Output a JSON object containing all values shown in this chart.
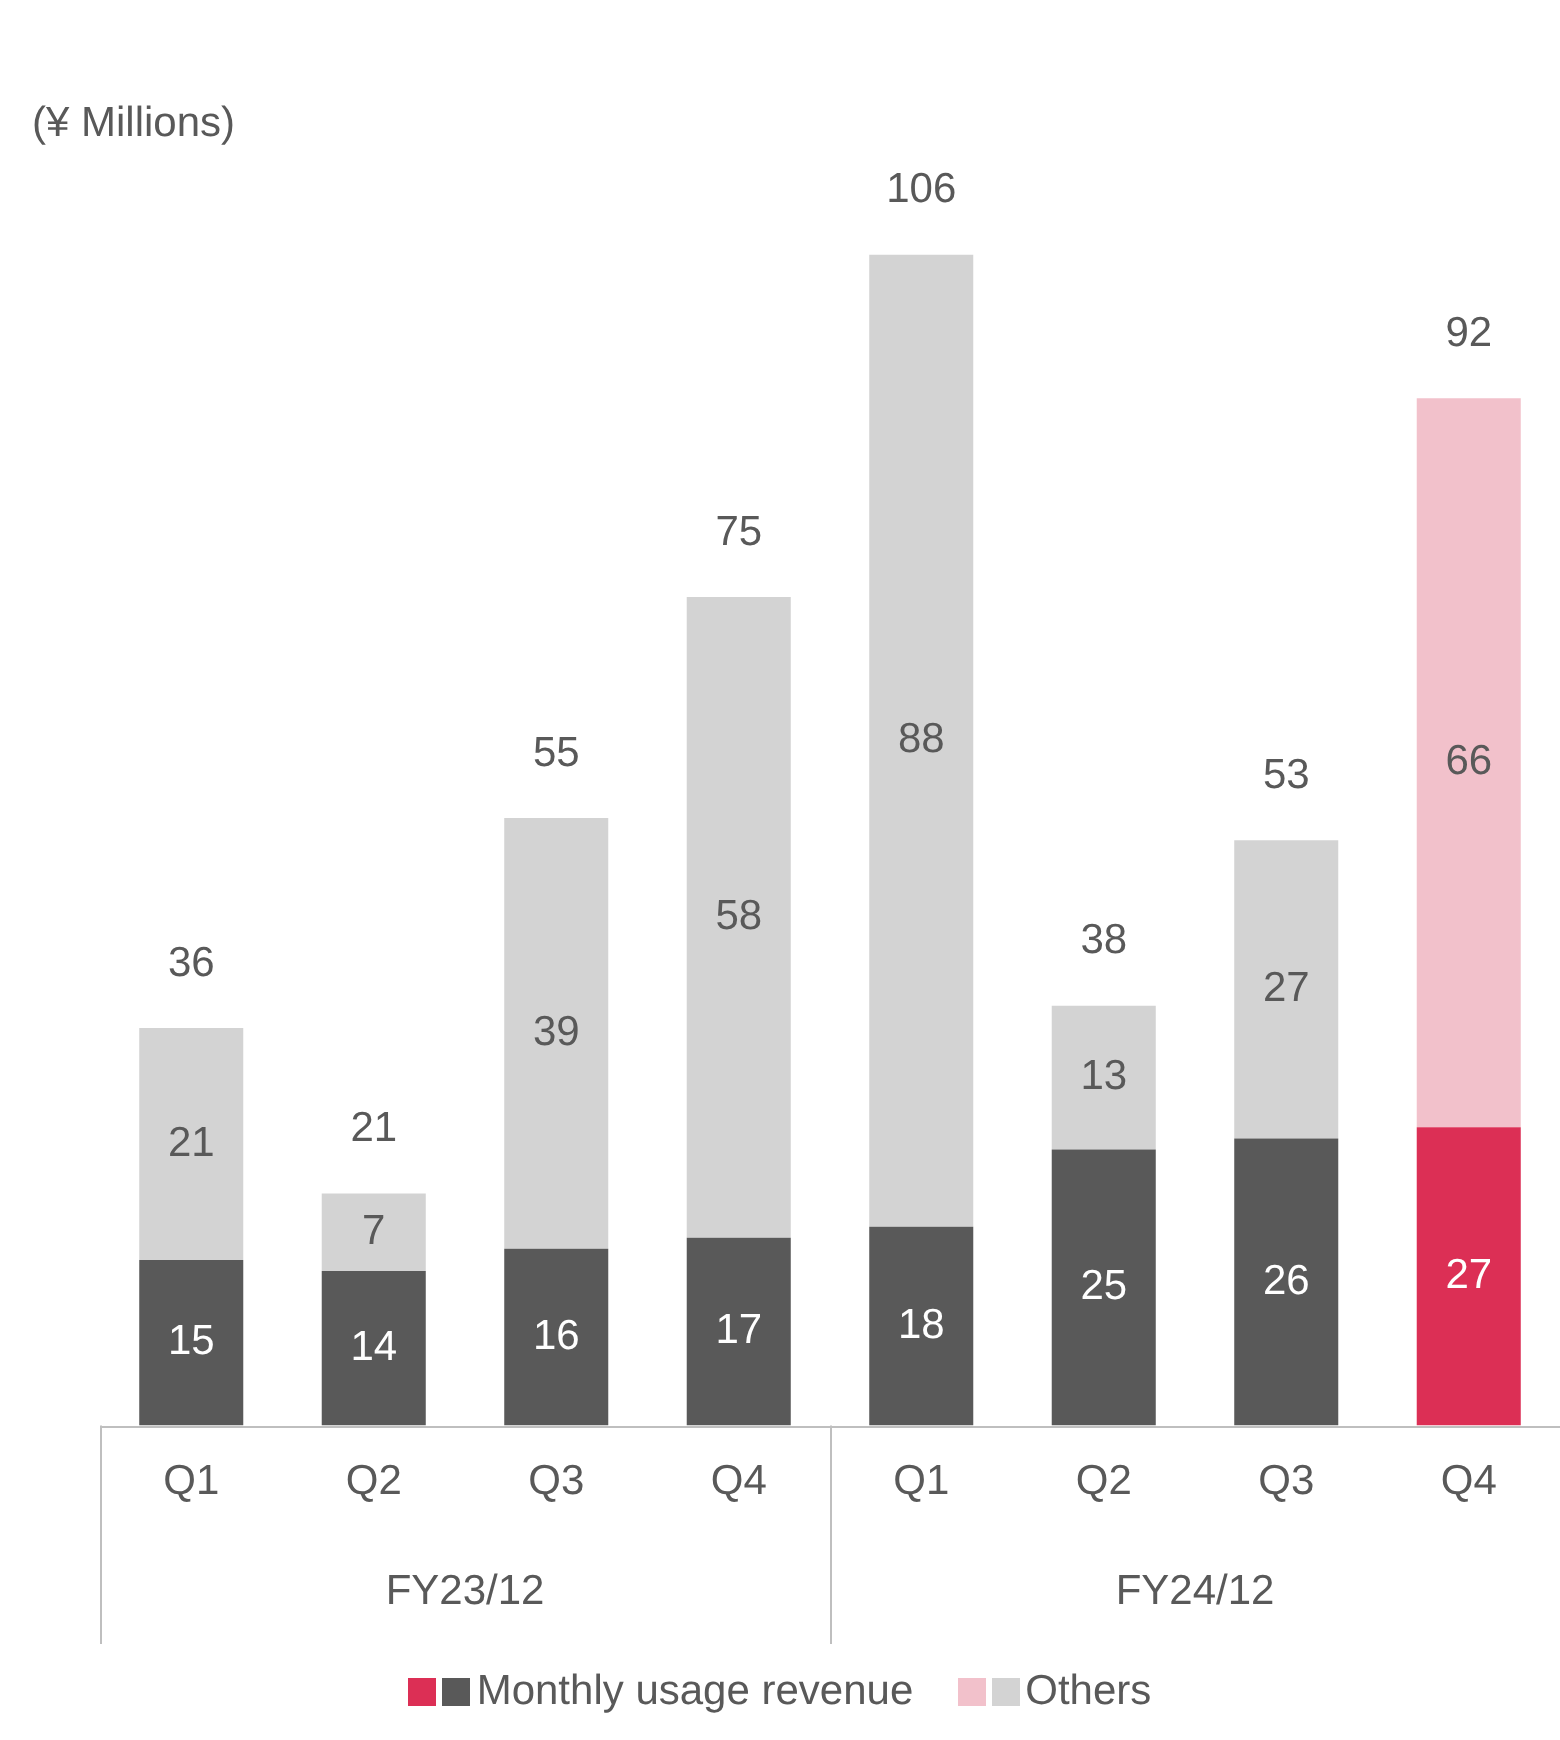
{
  "chart_data": {
    "type": "bar",
    "stacked": true,
    "ylabel": "(¥ Millions)",
    "categories": [
      "Q1",
      "Q2",
      "Q3",
      "Q4",
      "Q1",
      "Q2",
      "Q3",
      "Q4"
    ],
    "series": [
      {
        "name": "Monthly usage revenue",
        "color": "#595959",
        "colors": [
          "#595959",
          "#595959",
          "#595959",
          "#595959",
          "#595959",
          "#595959",
          "#595959",
          "#dc2f55"
        ],
        "values": [
          15,
          14,
          16,
          17,
          18,
          25,
          26,
          27
        ]
      },
      {
        "name": "Others",
        "color": "#d3d3d3",
        "colors": [
          "#d3d3d3",
          "#d3d3d3",
          "#d3d3d3",
          "#d3d3d3",
          "#d3d3d3",
          "#d3d3d3",
          "#d3d3d3",
          "#f2c1cb"
        ],
        "values": [
          21,
          7,
          39,
          58,
          88,
          13,
          27,
          66
        ]
      }
    ],
    "totals": [
      "36",
      "21",
      "55",
      "75",
      "106",
      "38",
      "53",
      "92"
    ],
    "data_labels": true,
    "annotations": [
      "FY23/12",
      "FY24/12"
    ],
    "legend": "bottom",
    "grid": false
  }
}
